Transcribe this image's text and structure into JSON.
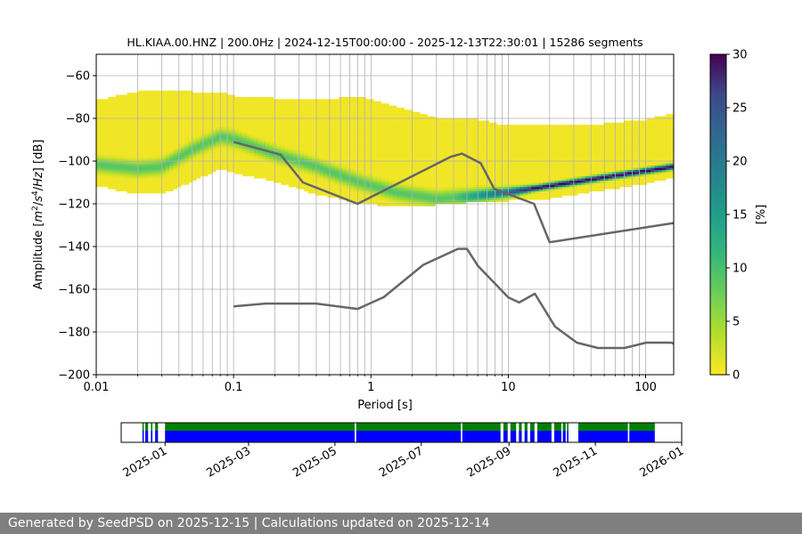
{
  "chart_data": [
    {
      "type": "heatmap",
      "title": "HL.KIAA.00.HNZ | 200.0Hz | 2024-12-15T00:00:00 - 2025-12-13T22:30:01 | 15286 segments",
      "xlabel": "Period [s]",
      "ylabel_parts": [
        "Amplitude [",
        "m",
        "2",
        "/",
        "s",
        "4",
        "/",
        "Hz",
        "] [dB]"
      ],
      "xscale": "log",
      "xlim": [
        0.01,
        160
      ],
      "ylim": [
        -200,
        -50
      ],
      "x_ticks": [
        0.01,
        0.1,
        1,
        10,
        100
      ],
      "x_tick_labels": [
        "0.01",
        "0.1",
        "1",
        "10",
        "100"
      ],
      "y_ticks": [
        -200,
        -180,
        -160,
        -140,
        -120,
        -100,
        -80,
        -60
      ],
      "y_tick_labels": [
        "−200",
        "−180",
        "−160",
        "−140",
        "−120",
        "−100",
        "−80",
        "−60"
      ],
      "grid": true,
      "colorbar": {
        "label": "[%]",
        "range": [
          0,
          30
        ],
        "ticks": [
          0,
          5,
          10,
          15,
          20,
          25,
          30
        ],
        "colormap": "viridis_r"
      },
      "psd_envelope": [
        {
          "period": 0.01,
          "low": -112,
          "high": -72,
          "mode": -102
        },
        {
          "period": 0.02,
          "low": -116,
          "high": -68,
          "mode": -104
        },
        {
          "period": 0.03,
          "low": -116,
          "high": -67,
          "mode": -103
        },
        {
          "period": 0.05,
          "low": -110,
          "high": -68,
          "mode": -95
        },
        {
          "period": 0.08,
          "low": -104,
          "high": -68,
          "mode": -89
        },
        {
          "period": 0.1,
          "low": -106,
          "high": -70,
          "mode": -90
        },
        {
          "period": 0.2,
          "low": -110,
          "high": -71,
          "mode": -97
        },
        {
          "period": 0.4,
          "low": -116,
          "high": -72,
          "mode": -103
        },
        {
          "period": 0.8,
          "low": -120,
          "high": -70,
          "mode": -110
        },
        {
          "period": 1.5,
          "low": -122,
          "high": -75,
          "mode": -115
        },
        {
          "period": 3,
          "low": -121,
          "high": -80,
          "mode": -118
        },
        {
          "period": 5,
          "low": -120,
          "high": -80,
          "mode": -117
        },
        {
          "period": 10,
          "low": -119,
          "high": -84,
          "mode": -115
        },
        {
          "period": 20,
          "low": -118,
          "high": -83,
          "mode": -112
        },
        {
          "period": 50,
          "low": -114,
          "high": -83,
          "mode": -108
        },
        {
          "period": 100,
          "low": -111,
          "high": -81,
          "mode": -105
        },
        {
          "period": 160,
          "low": -108,
          "high": -78,
          "mode": -103
        }
      ],
      "series": [
        {
          "name": "NHNM",
          "points": [
            [
              0.1,
              -91
            ],
            [
              0.22,
              -97
            ],
            [
              0.32,
              -110
            ],
            [
              0.8,
              -120
            ],
            [
              3.8,
              -98
            ],
            [
              4.6,
              -96.5
            ],
            [
              6.3,
              -101
            ],
            [
              7.9,
              -113
            ],
            [
              15.4,
              -120
            ],
            [
              20,
              -138
            ],
            [
              160,
              -129
            ]
          ]
        },
        {
          "name": "NLNM",
          "points": [
            [
              0.1,
              -168
            ],
            [
              0.17,
              -166.7
            ],
            [
              0.4,
              -166.7
            ],
            [
              0.8,
              -169.2
            ],
            [
              1.24,
              -163.7
            ],
            [
              2.4,
              -148.6
            ],
            [
              4.3,
              -141.1
            ],
            [
              5,
              -141.1
            ],
            [
              6,
              -149
            ],
            [
              10,
              -163.8
            ],
            [
              12,
              -166.2
            ],
            [
              15.6,
              -162.1
            ],
            [
              21.9,
              -177.5
            ],
            [
              31.6,
              -185
            ],
            [
              45,
              -187.5
            ],
            [
              70,
              -187.5
            ],
            [
              101,
              -185
            ],
            [
              154,
              -185
            ],
            [
              160,
              -185.5
            ]
          ]
        }
      ]
    },
    {
      "type": "bar",
      "x_tick_labels": [
        "2025-01",
        "2025-03",
        "2025-05",
        "2025-07",
        "2025-09",
        "2025-11",
        "2026-01"
      ],
      "xlim": [
        "2024-12-01",
        "2026-01-01"
      ],
      "rows": [
        {
          "row": "top",
          "color": "#008000"
        },
        {
          "row": "bottom",
          "color": "#0000ff"
        }
      ],
      "coverage_segments": [
        [
          "2024-12-16",
          "2024-12-17"
        ],
        [
          "2024-12-18",
          "2024-12-20"
        ],
        [
          "2024-12-22",
          "2024-12-23"
        ],
        [
          "2024-12-25",
          "2024-12-27"
        ],
        [
          "2025-01-01",
          "2025-05-15"
        ],
        [
          "2025-05-16",
          "2025-07-29"
        ],
        [
          "2025-07-30",
          "2025-08-26"
        ],
        [
          "2025-08-28",
          "2025-08-31"
        ],
        [
          "2025-09-02",
          "2025-09-06"
        ],
        [
          "2025-09-08",
          "2025-09-10"
        ],
        [
          "2025-09-12",
          "2025-09-14"
        ],
        [
          "2025-09-16",
          "2025-09-19"
        ],
        [
          "2025-09-21",
          "2025-10-01"
        ],
        [
          "2025-10-03",
          "2025-10-08"
        ],
        [
          "2025-10-09",
          "2025-10-11"
        ],
        [
          "2025-10-12",
          "2025-10-13"
        ],
        [
          "2025-10-20",
          "2025-11-24"
        ],
        [
          "2025-11-25",
          "2025-12-13"
        ]
      ]
    }
  ],
  "footer": {
    "text": "Generated by SeedPSD on 2025-12-15 | Calculations updated on 2025-12-14"
  }
}
